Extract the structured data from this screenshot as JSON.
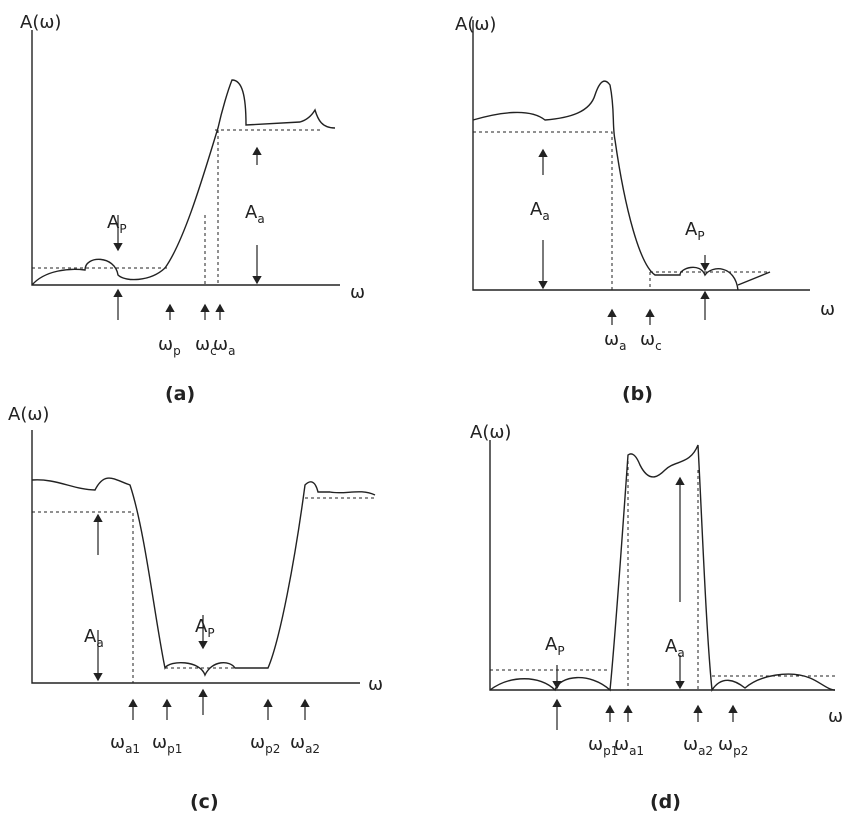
{
  "panels": [
    {
      "caption": "(a)",
      "y_label": "A(ω)",
      "x_label": "ω",
      "labels": [
        {
          "main": "A",
          "sub": "P"
        },
        {
          "main": "A",
          "sub": "a"
        },
        {
          "main": "ω",
          "sub": "p"
        },
        {
          "main": "ω",
          "sub": "c"
        },
        {
          "main": "ω",
          "sub": "a"
        }
      ]
    },
    {
      "caption": "(b)",
      "y_label": "A(ω)",
      "x_label": "ω",
      "labels": [
        {
          "main": "A",
          "sub": "P"
        },
        {
          "main": "A",
          "sub": "a"
        },
        {
          "main": "ω",
          "sub": "a"
        },
        {
          "main": "ω",
          "sub": "c"
        }
      ]
    },
    {
      "caption": "(c)",
      "y_label": "A(ω)",
      "x_label": "ω",
      "labels": [
        {
          "main": "A",
          "sub": "a"
        },
        {
          "main": "A",
          "sub": "P"
        },
        {
          "main": "ω",
          "sub": "a1"
        },
        {
          "main": "ω",
          "sub": "p1"
        },
        {
          "main": "ω",
          "sub": "p2"
        },
        {
          "main": "ω",
          "sub": "a2"
        }
      ]
    },
    {
      "caption": "(d)",
      "y_label": "A(ω)",
      "x_label": "ω",
      "labels": [
        {
          "main": "A",
          "sub": "P"
        },
        {
          "main": "A",
          "sub": "a"
        },
        {
          "main": "ω",
          "sub": "p1"
        },
        {
          "main": "ω",
          "sub": "a1"
        },
        {
          "main": "ω",
          "sub": "a2"
        },
        {
          "main": "ω",
          "sub": "p2"
        }
      ]
    }
  ]
}
